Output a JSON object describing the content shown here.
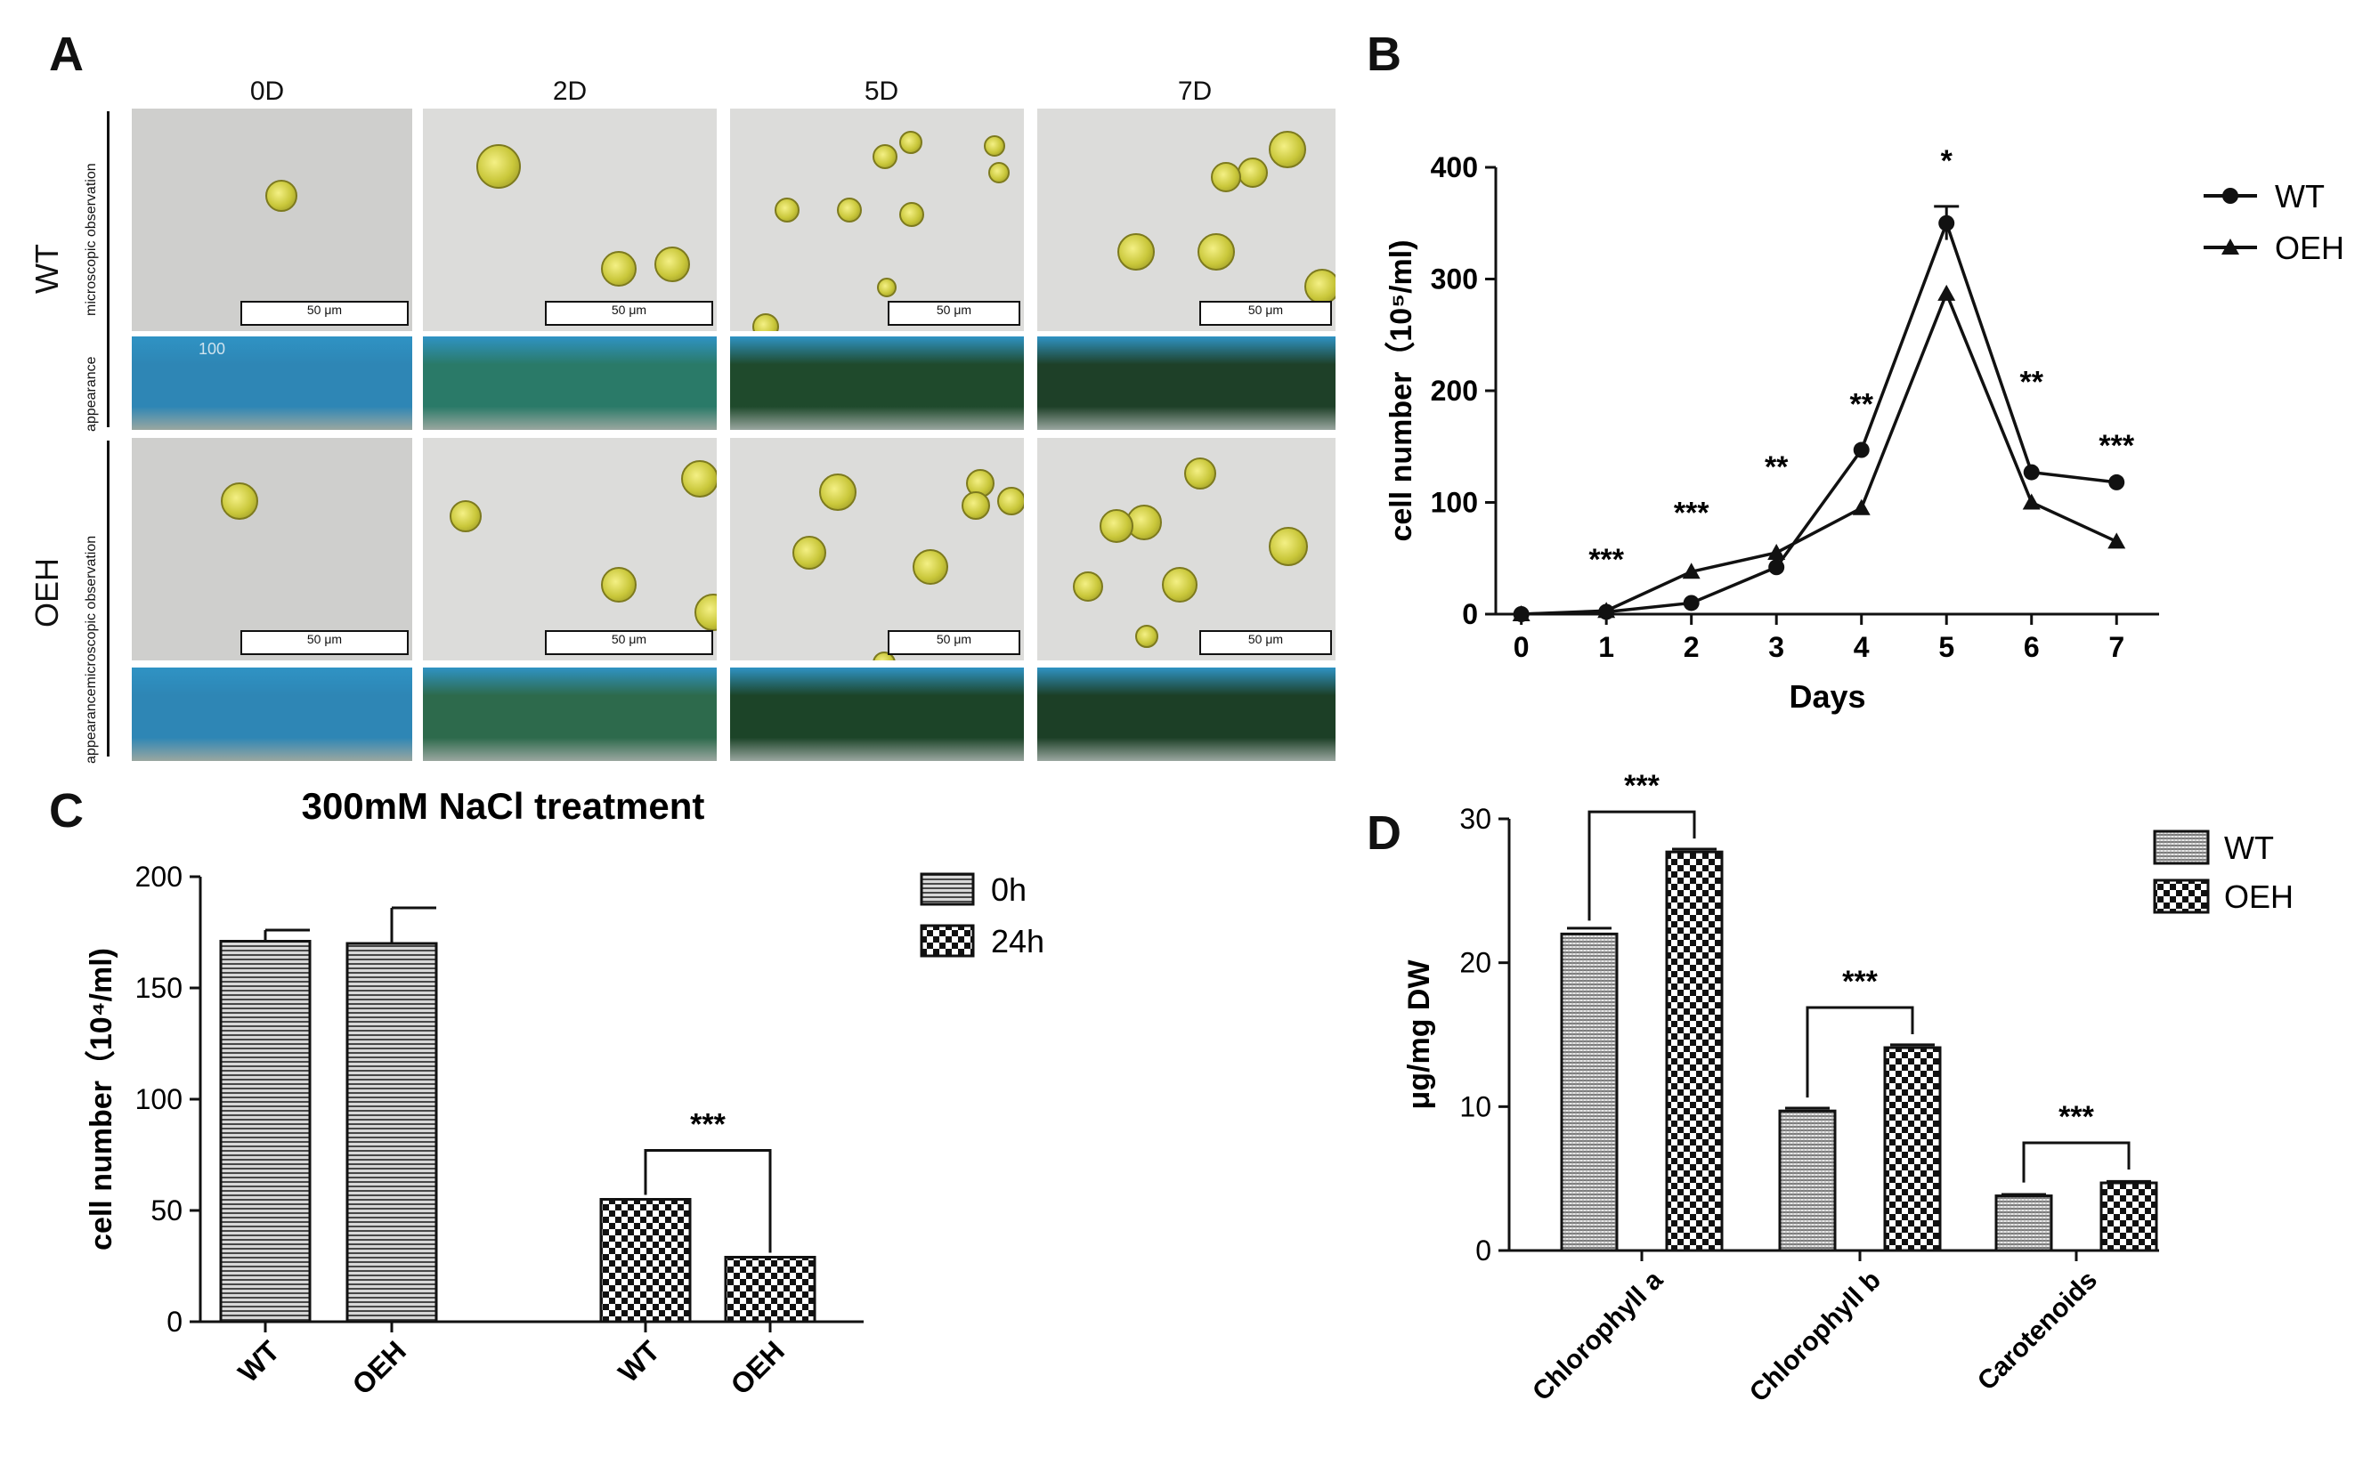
{
  "panels": {
    "a": "A",
    "b": "B",
    "c": "C",
    "d": "D"
  },
  "panel_a": {
    "columns": [
      "0D",
      "2D",
      "5D",
      "7D"
    ],
    "rows": [
      "WT",
      "OEH"
    ],
    "row_sublabels": [
      "microscopic observation",
      "appearance",
      "appearancemicroscopic observation"
    ],
    "scale_label": "50 μm",
    "flask_mark": "100",
    "flask_colors": {
      "wt": [
        "#2e86b5",
        "#2a7a68",
        "#1f4a2c",
        "#1e4028"
      ],
      "oeh": [
        "#2e86b5",
        "#2d6a4c",
        "#1c4428",
        "#1c3f26"
      ]
    }
  },
  "chart_data": [
    {
      "id": "B",
      "type": "line",
      "xlabel": "Days",
      "ylabel": "cell number（10⁵/ml)",
      "x": [
        0,
        1,
        2,
        3,
        4,
        5,
        6,
        7
      ],
      "xlim": [
        -0.3,
        7.5
      ],
      "ylim": [
        0,
        400
      ],
      "yticks": [
        0,
        100,
        200,
        300,
        400
      ],
      "series": [
        {
          "name": "WT",
          "marker": "circle",
          "values": [
            0,
            2,
            10,
            42,
            147,
            350,
            127,
            118
          ],
          "errors": [
            0,
            0,
            0,
            0,
            0,
            15,
            0,
            0
          ]
        },
        {
          "name": "OEH",
          "marker": "triangle",
          "values": [
            0,
            3,
            38,
            55,
            95,
            287,
            100,
            65
          ],
          "errors": [
            0,
            0,
            0,
            0,
            0,
            0,
            0,
            0
          ]
        }
      ],
      "annotations": [
        {
          "x": 1,
          "text": "***"
        },
        {
          "x": 2,
          "text": "***"
        },
        {
          "x": 3,
          "text": "**"
        },
        {
          "x": 4,
          "text": "**"
        },
        {
          "x": 5,
          "text": "*"
        },
        {
          "x": 6,
          "text": "**"
        },
        {
          "x": 7,
          "text": "***"
        }
      ],
      "legend": "top-right"
    },
    {
      "id": "C",
      "type": "bar",
      "title": "300mM NaCl treatment",
      "ylabel": "cell number（10⁴/ml)",
      "ylim": [
        0,
        200
      ],
      "yticks": [
        0,
        50,
        100,
        150,
        200
      ],
      "categories": [
        "WT",
        "OEH",
        "WT",
        "OEH"
      ],
      "values": [
        171,
        170,
        55,
        29
      ],
      "errors": [
        5,
        16,
        0,
        0
      ],
      "groups": [
        "0h",
        "0h",
        "24h",
        "24h"
      ],
      "legend_entries": [
        "0h",
        "24h"
      ],
      "significance": "***",
      "legend": "top-right"
    },
    {
      "id": "D",
      "type": "bar",
      "ylabel": "μg/mg DW",
      "ylim": [
        0,
        30
      ],
      "yticks": [
        0,
        10,
        20,
        30
      ],
      "categories": [
        "Chlorophyll a",
        "Chlorophyll b",
        "Carotenoids"
      ],
      "series": [
        {
          "name": "WT",
          "values": [
            22,
            9.7,
            3.8
          ],
          "errors": [
            0.4,
            0.2,
            0.1
          ]
        },
        {
          "name": "OEH",
          "values": [
            27.7,
            14.1,
            4.7
          ],
          "errors": [
            0.2,
            0.2,
            0.1
          ]
        }
      ],
      "significance": [
        "***",
        "***",
        "***"
      ],
      "legend": "top-right"
    }
  ]
}
